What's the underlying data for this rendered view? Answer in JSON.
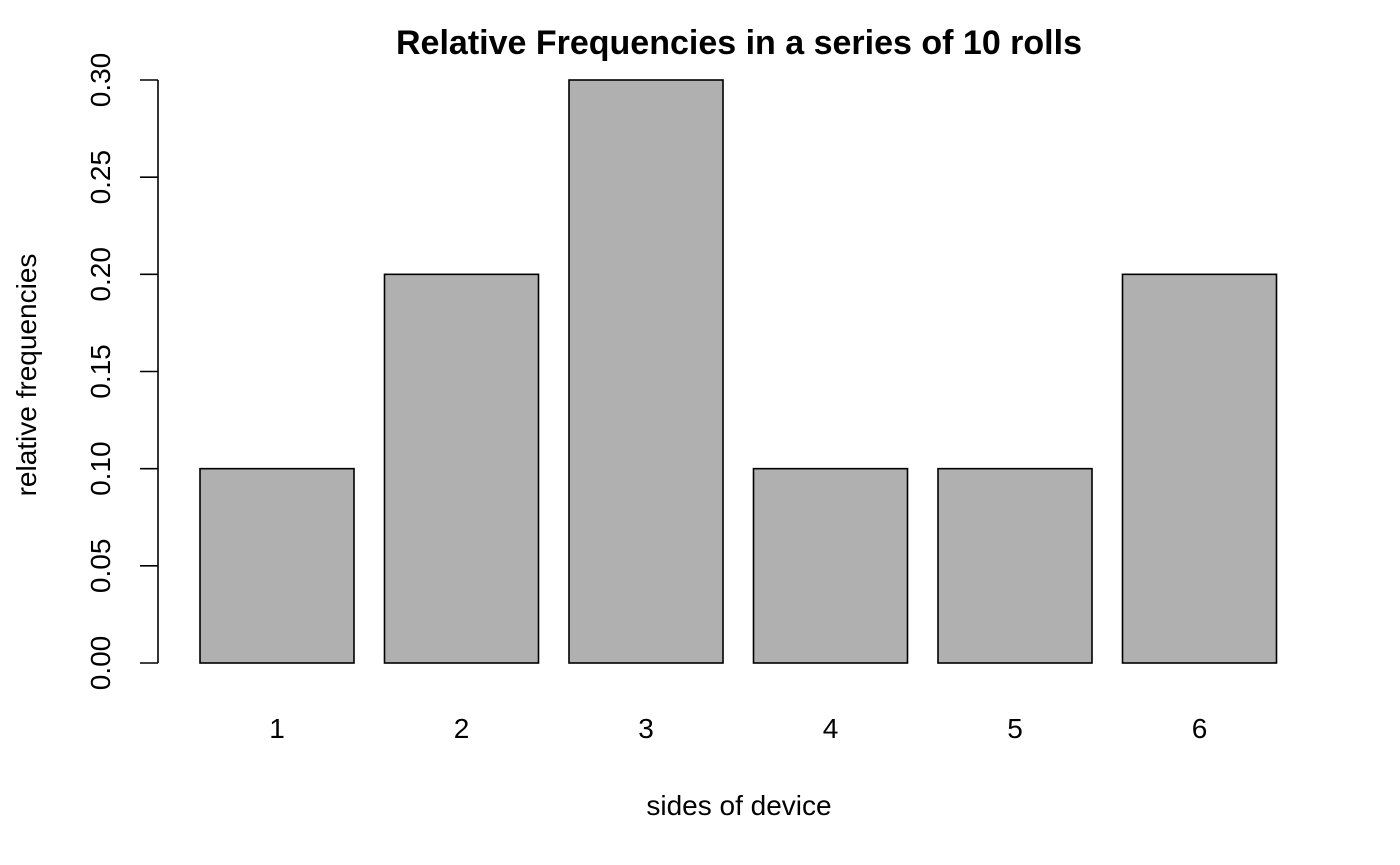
{
  "chart_data": {
    "type": "bar",
    "title": "Relative Frequencies in a series of 10 rolls",
    "xlabel": "sides of device",
    "ylabel": "relative frequencies",
    "categories": [
      "1",
      "2",
      "3",
      "4",
      "5",
      "6"
    ],
    "values": [
      0.1,
      0.2,
      0.3,
      0.1,
      0.1,
      0.2
    ],
    "ylim": [
      0,
      0.3
    ],
    "yticks": [
      "0.00",
      "0.05",
      "0.10",
      "0.15",
      "0.20",
      "0.25",
      "0.30"
    ],
    "bar_color": "#b0b0b0",
    "grid": false
  }
}
